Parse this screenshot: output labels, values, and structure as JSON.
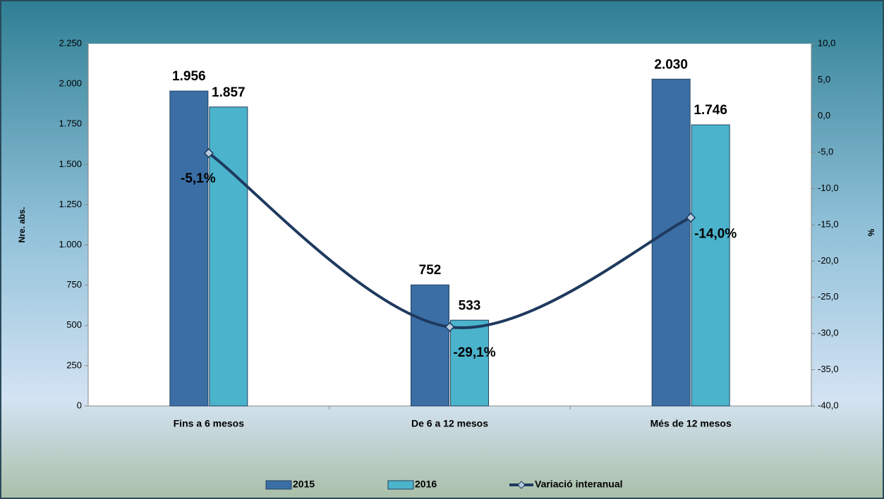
{
  "chart_data": {
    "type": "bar",
    "categories": [
      "Fins a 6 mesos",
      "De 6 a 12 mesos",
      "Més de 12 mesos"
    ],
    "series": [
      {
        "name": "2015",
        "color": "#3a6ea5",
        "values": [
          1956,
          752,
          2030
        ],
        "value_labels": [
          "1.956",
          "752",
          "2.030"
        ]
      },
      {
        "name": "2016",
        "color": "#4bb3cc",
        "values": [
          1857,
          533,
          1746
        ],
        "value_labels": [
          "1.857",
          "533",
          "1.746"
        ]
      },
      {
        "name": "Variació interanual",
        "type": "line",
        "axis": "y2",
        "color": "#1f3a5f",
        "values": [
          -5.1,
          -29.1,
          -14.0
        ],
        "value_labels": [
          "-5,1%",
          "-29,1%",
          "-14,0%"
        ]
      }
    ],
    "y_label": "Nre. abs.",
    "y2_label": "%",
    "ylim": [
      0,
      2250
    ],
    "yticks": [
      0,
      250,
      500,
      750,
      {
        "value": 1000,
        "label": "1.000"
      },
      {
        "value": 1250,
        "label": "1.250"
      },
      {
        "value": 1500,
        "label": "1.500"
      },
      {
        "value": 1750,
        "label": "1.750"
      },
      {
        "value": 2000,
        "label": "2.000"
      },
      {
        "value": 2250,
        "label": "2.250"
      }
    ],
    "y2lim": [
      -40,
      10
    ],
    "y2ticks": [
      {
        "value": -40,
        "label": "-40,0"
      },
      {
        "value": -35,
        "label": "-35,0"
      },
      {
        "value": -30,
        "label": "-30,0"
      },
      {
        "value": -25,
        "label": "-25,0"
      },
      {
        "value": -20,
        "label": "-20,0"
      },
      {
        "value": -15,
        "label": "-15,0"
      },
      {
        "value": -10,
        "label": "-10,0"
      },
      {
        "value": -5,
        "label": "-5,0"
      },
      {
        "value": 0,
        "label": "0,0"
      },
      {
        "value": 5,
        "label": "5,0"
      },
      {
        "value": 10,
        "label": "10,0"
      }
    ],
    "legend": "bottom"
  }
}
